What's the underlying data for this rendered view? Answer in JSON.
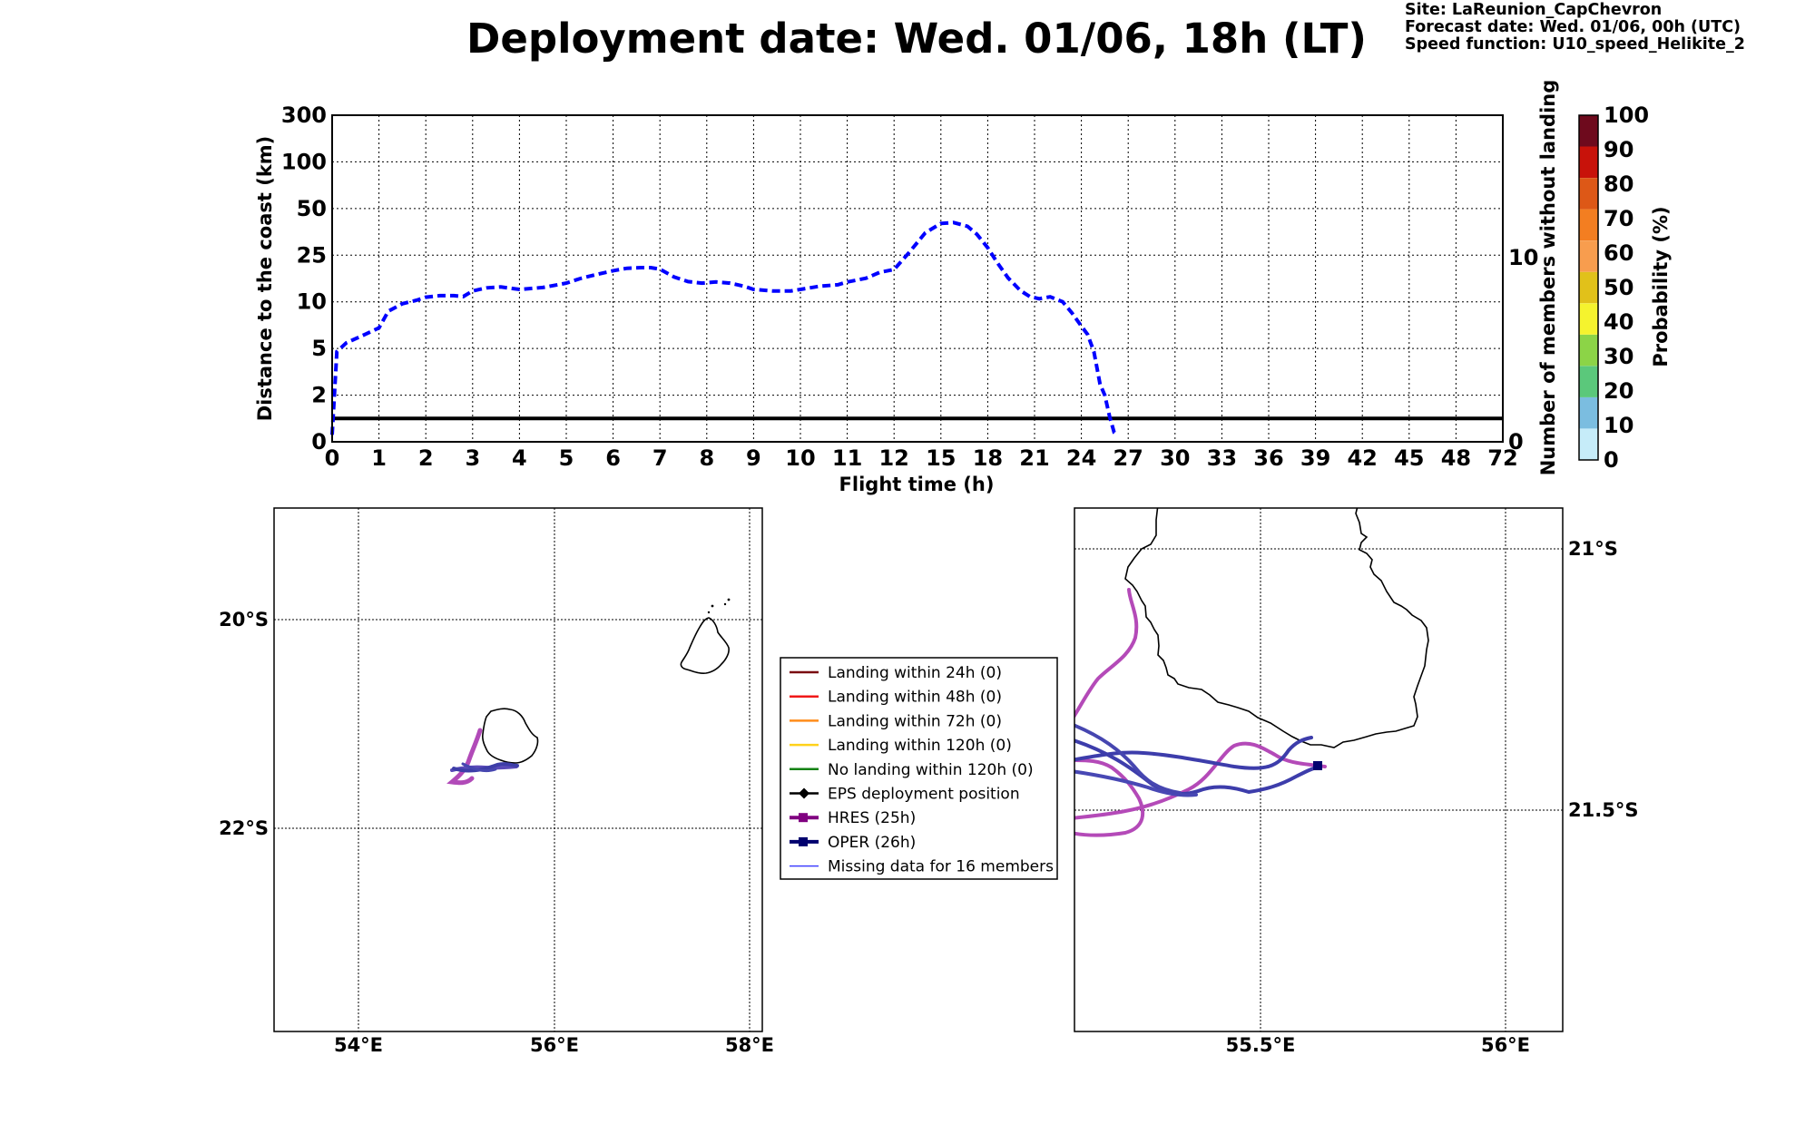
{
  "header": {
    "title": "Deployment date: Wed. 01/06, 18h (LT)",
    "site": "Site: LaReunion_CapChevron",
    "forecast_date": "Forecast date: Wed. 01/06, 00h (UTC)",
    "speed_function": "Speed function: U10_speed_Helikite_2"
  },
  "chart_data": [
    {
      "type": "line",
      "xlabel": "Flight time (h)",
      "ylabel": "Distance to the coast (km)",
      "y2label": "Number of members without landing",
      "x_ticks": [
        "0",
        "1",
        "2",
        "3",
        "4",
        "5",
        "6",
        "7",
        "8",
        "9",
        "10",
        "11",
        "12",
        "15",
        "18",
        "21",
        "24",
        "27",
        "30",
        "33",
        "36",
        "39",
        "42",
        "45",
        "48",
        "72"
      ],
      "y_ticks": [
        "0",
        "2",
        "5",
        "10",
        "25",
        "50",
        "100",
        "300"
      ],
      "y2_ticks": [
        "0",
        "10"
      ],
      "grid": true,
      "series": [
        {
          "color": "#0000ff",
          "style": "dashed",
          "x": [
            0,
            0.1,
            0.3,
            0.7,
            1,
            1.2,
            1.5,
            1.8,
            2,
            2.3,
            2.6,
            2.8,
            3,
            3.3,
            3.6,
            4,
            4.5,
            5,
            5.3,
            5.7,
            6,
            6.3,
            6.6,
            6.8,
            7,
            7.3,
            7.6,
            7.9,
            8.2,
            8.5,
            8.8,
            9,
            9.4,
            9.8,
            10,
            10.4,
            10.8,
            11,
            11.4,
            11.7,
            12,
            13,
            14,
            15,
            15.8,
            16.7,
            17.3,
            18,
            18.6,
            19.3,
            20.1,
            20.7,
            21.3,
            22,
            22.8,
            23.4,
            24,
            24.4,
            24.8,
            25.2,
            25.5,
            25.8,
            26.1,
            26.3
          ],
          "y": [
            0.3,
            4.8,
            5.6,
            6.5,
            7.2,
            9,
            9.8,
            10.5,
            11.5,
            12,
            12,
            11.7,
            13.5,
            14.5,
            14.8,
            14,
            14.6,
            16,
            17.5,
            19,
            20,
            20.8,
            21,
            21,
            20.5,
            18,
            16.5,
            16,
            16.4,
            16,
            15,
            14,
            13.5,
            13.5,
            14,
            15,
            15.5,
            16.4,
            17.6,
            19.5,
            20.4,
            26.8,
            37,
            42,
            42.5,
            40.5,
            36.2,
            29,
            22.7,
            17.7,
            13.6,
            11.7,
            11,
            11.6,
            10,
            8.8,
            7.4,
            6.5,
            4.8,
            2.7,
            2,
            1.1,
            0.4,
            0.3
          ]
        }
      ],
      "reference_line": {
        "color": "#000000",
        "y_value": 1
      }
    },
    {
      "type": "map",
      "x_ticks": [
        "54°E",
        "56°E",
        "58°E"
      ],
      "y_ticks": [
        "20°S",
        "22°S"
      ],
      "lon_range": [
        53.1,
        58.2
      ],
      "lat_range": [
        -24.0,
        -19.0
      ]
    },
    {
      "type": "map",
      "x_ticks": [
        "55.5°E",
        "56°E"
      ],
      "y_ticks": [
        "21°S",
        "21.5°S"
      ],
      "lon_range": [
        55.1,
        56.1
      ],
      "lat_range": [
        -21.93,
        -20.92
      ]
    }
  ],
  "colorbar": {
    "label": "Probability (%)",
    "ticks": [
      "0",
      "10",
      "20",
      "30",
      "40",
      "50",
      "60",
      "70",
      "80",
      "90",
      "100"
    ],
    "colors": [
      "#c6ecf9",
      "#7bbde0",
      "#5bc87b",
      "#8cd447",
      "#f5f32e",
      "#e1c11a",
      "#f89d4e",
      "#f37e21",
      "#dd5817",
      "#c8120a",
      "#6e0a1d"
    ]
  },
  "legend": {
    "items": [
      {
        "label": "Landing within 24h (0)",
        "color": "#7a0a10",
        "kind": "line"
      },
      {
        "label": "Landing within 48h (0)",
        "color": "#f01818",
        "kind": "line"
      },
      {
        "label": "Landing within 72h (0)",
        "color": "#ff8c1a",
        "kind": "line"
      },
      {
        "label": "Landing within 120h (0)",
        "color": "#ffd21a",
        "kind": "line"
      },
      {
        "label": "No landing within 120h (0)",
        "color": "#148214",
        "kind": "line"
      },
      {
        "label": "EPS deployment position",
        "color": "#000000",
        "kind": "diamond"
      },
      {
        "label": "HRES (25h)",
        "color": "#800080",
        "kind": "square"
      },
      {
        "label": "OPER (26h)",
        "color": "#00006e",
        "kind": "square"
      },
      {
        "label": "Missing data for 16 members",
        "color": "#4040ff",
        "kind": "thin"
      }
    ]
  }
}
